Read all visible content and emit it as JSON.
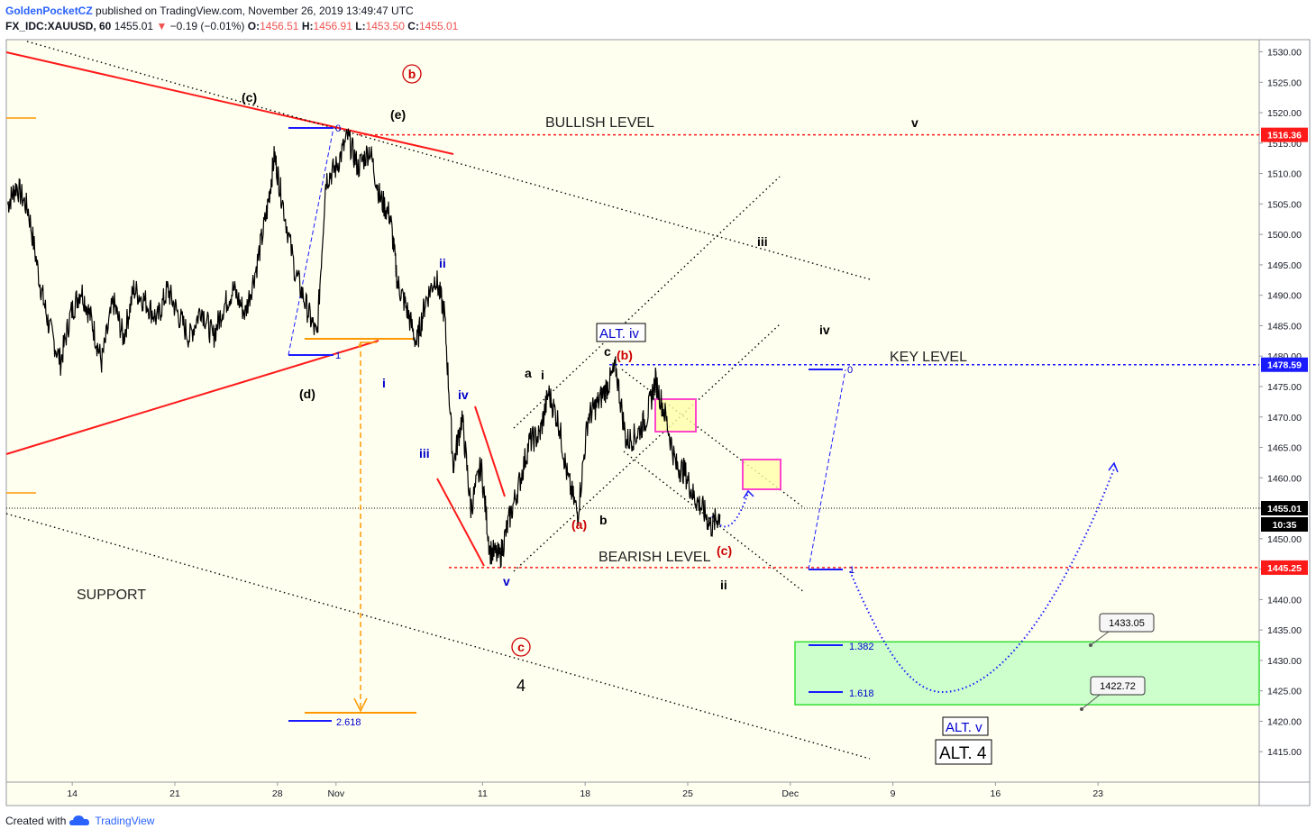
{
  "header": {
    "author": "GoldenPocketCZ",
    "published": "published on TradingView.com, November 26, 2019 13:49:47 UTC",
    "symbol": "FX_IDC:XAUUSD, 60",
    "last": "1455.01",
    "arrow": "▼",
    "change": "−0.19 (−0.01%)",
    "o_label": "O:",
    "o_value": "1456.51",
    "h_label": "H:",
    "h_value": "1456.91",
    "l_label": "L:",
    "l_value": "1453.50",
    "c_label": "C:",
    "c_value": "1455.01"
  },
  "footer": {
    "created_with": "Created with",
    "brand": "TradingView",
    "logo_icon": "tradingview-cloud-icon"
  },
  "colors": {
    "plot_background": "#fffff0",
    "price": "#000000",
    "red_level": "#ff1a1a",
    "blue_level": "#1a1aff",
    "orange": "#ff9800",
    "target_zone": "#ccffcc",
    "target_border": "#33dd33",
    "magenta_box": "#ff44cc",
    "wave_black": "#000000",
    "wave_blue": "#0000cc",
    "wave_red": "#cc0000"
  },
  "chart_data": {
    "type": "line",
    "title": "",
    "xlabel": "",
    "ylabel": "",
    "x_tick_labels": [
      "14",
      "21",
      "28",
      "Nov",
      "11",
      "18",
      "25",
      "Dec",
      "9",
      "16",
      "23"
    ],
    "x_tick_days": [
      14,
      21,
      28,
      32,
      42,
      49,
      56,
      63,
      70,
      77,
      84
    ],
    "xlim_days": [
      9.5,
      95
    ],
    "y_ticks": [
      1530,
      1525,
      1520,
      1515,
      1510,
      1505,
      1500,
      1495,
      1490,
      1485,
      1480,
      1475,
      1470,
      1465,
      1460,
      1455,
      1450,
      1445,
      1440,
      1435,
      1430,
      1425,
      1420,
      1415
    ],
    "ylim": [
      1410,
      1532
    ],
    "grid": false,
    "series": [
      {
        "values_x_days": [
          9.6,
          10.2,
          11.0,
          11.8,
          12.4,
          13.2,
          13.9,
          14.6,
          15.3,
          16.0,
          16.8,
          17.5,
          18.2,
          19.0,
          19.8,
          20.5,
          21.2,
          22.0,
          22.8,
          23.6,
          24.3,
          25.0,
          25.8,
          26.6,
          27.3,
          27.8,
          28.3,
          29.2,
          30.0,
          30.7,
          31.3,
          32.0,
          32.8,
          33.5,
          34.3,
          35.0,
          35.7,
          36.2,
          36.8,
          37.5,
          38.1,
          38.8,
          39.4,
          40.0,
          40.6,
          41.2,
          41.9,
          42.5,
          43.2,
          43.8,
          44.5,
          45.2,
          45.9,
          46.5,
          47.2,
          47.8,
          48.5,
          49.2,
          49.8,
          50.5,
          51.1,
          51.8,
          52.5,
          53.2,
          53.8,
          54.5,
          55.2,
          55.8,
          56.4,
          57.0,
          57.6,
          58.2
        ],
        "values_y": [
          1505,
          1508,
          1504,
          1492,
          1485,
          1479,
          1487,
          1491,
          1486,
          1479,
          1489,
          1483,
          1491,
          1489,
          1486,
          1491,
          1487,
          1483,
          1488,
          1483,
          1488,
          1491,
          1487,
          1495,
          1504,
          1513,
          1506,
          1494,
          1488,
          1483,
          1509,
          1511,
          1516,
          1511,
          1514,
          1506,
          1503,
          1492,
          1488,
          1482,
          1489,
          1493,
          1487,
          1462,
          1470,
          1455,
          1462,
          1448,
          1447,
          1453,
          1459,
          1466,
          1467,
          1474,
          1469,
          1460,
          1454,
          1470,
          1472,
          1475,
          1478,
          1466,
          1467,
          1470,
          1476,
          1470,
          1462,
          1461,
          1457,
          1455,
          1452,
          1454
        ]
      }
    ],
    "price_levels": [
      {
        "label": "1516.36",
        "value": 1516.36,
        "color": "red"
      },
      {
        "label": "1478.59",
        "value": 1478.59,
        "color": "blue"
      },
      {
        "label": "1455.01",
        "value": 1455.01,
        "color": "black"
      },
      {
        "label": "1445.25",
        "value": 1445.25,
        "color": "red"
      }
    ],
    "countdown": "10:35",
    "target_zone": {
      "from": 1422.72,
      "to": 1433.05,
      "labels": [
        "1433.05",
        "1422.72"
      ]
    },
    "annotations": {
      "bullish": "BULLISH LEVEL",
      "bearish": "BEARISH LEVEL",
      "key": "KEY LEVEL",
      "support": "SUPPORT",
      "alt_iv": "ALT. iv",
      "alt_v": "ALT. v",
      "alt_4": "ALT. 4",
      "four": "4",
      "fib_0": "0",
      "fib_1": "1",
      "fib_2618": "2.618",
      "fib_1382": "1.382",
      "fib_1618": "1.618"
    },
    "wave_labels": {
      "c_paren": "(c)",
      "e_paren": "(e)",
      "d_paren": "(d)",
      "b_circle": "b",
      "c_circle": "c",
      "i": "i",
      "ii": "ii",
      "iii": "iii",
      "iv": "iv",
      "v": "v",
      "a": "a",
      "b": "b",
      "c": "c",
      "a_paren": "(a)",
      "b_paren": "(b)",
      "c_paren_red": "(c)",
      "iii_black": "iii",
      "iv_black": "iv",
      "v_black": "v",
      "ii_black": "ii"
    }
  }
}
